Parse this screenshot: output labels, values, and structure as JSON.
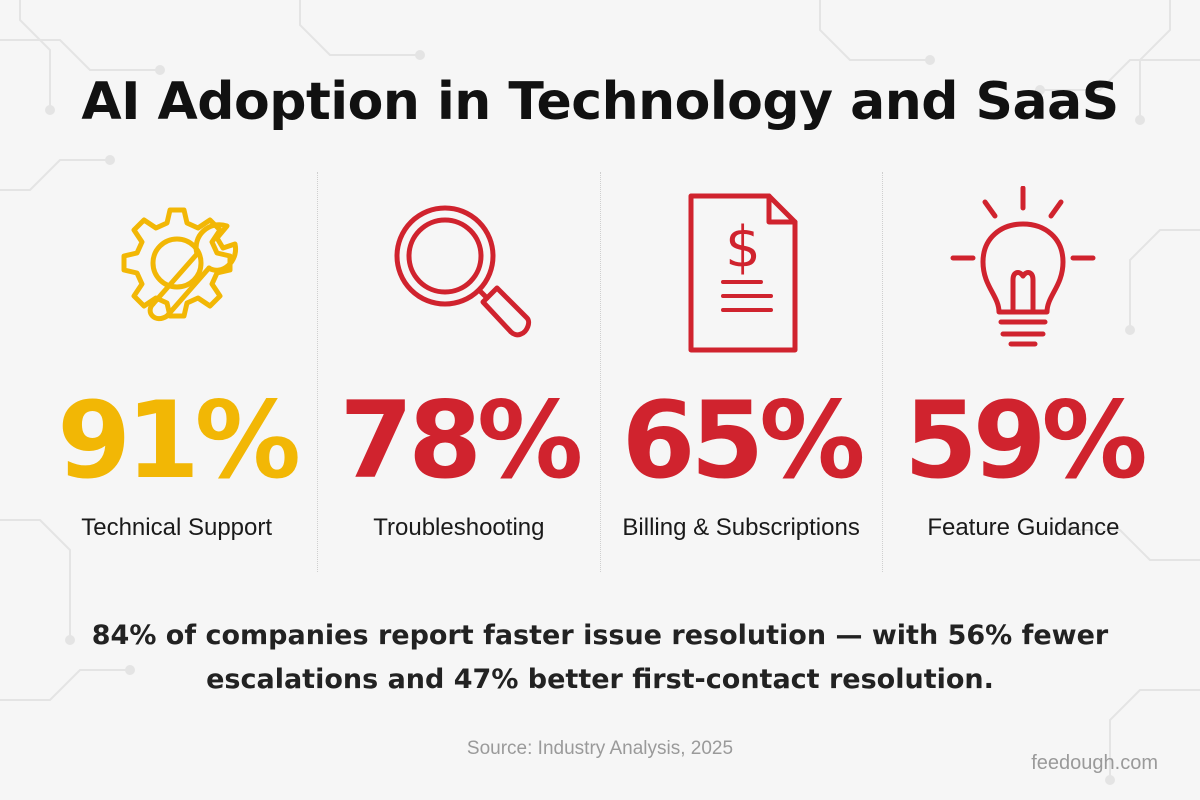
{
  "title": "AI Adoption in Technology and SaaS",
  "colors": {
    "yellow": "#f2b705",
    "red": "#d0232e",
    "text": "#111111",
    "muted": "#9a9a9a"
  },
  "stats": [
    {
      "value": "91%",
      "label": "Technical Support",
      "icon": "gear-wrench-icon",
      "color": "#f2b705"
    },
    {
      "value": "78%",
      "label": "Troubleshooting",
      "icon": "magnifier-icon",
      "color": "#d0232e"
    },
    {
      "value": "65%",
      "label": "Billing & Subscriptions",
      "icon": "invoice-dollar-icon",
      "color": "#d0232e"
    },
    {
      "value": "59%",
      "label": "Feature Guidance",
      "icon": "lightbulb-icon",
      "color": "#d0232e"
    }
  ],
  "summary": "84% of companies report faster issue resolution — with 56% fewer escalations and 47% better first-contact resolution.",
  "source": "Source: Industry Analysis, 2025",
  "credit": "feedough.com"
}
